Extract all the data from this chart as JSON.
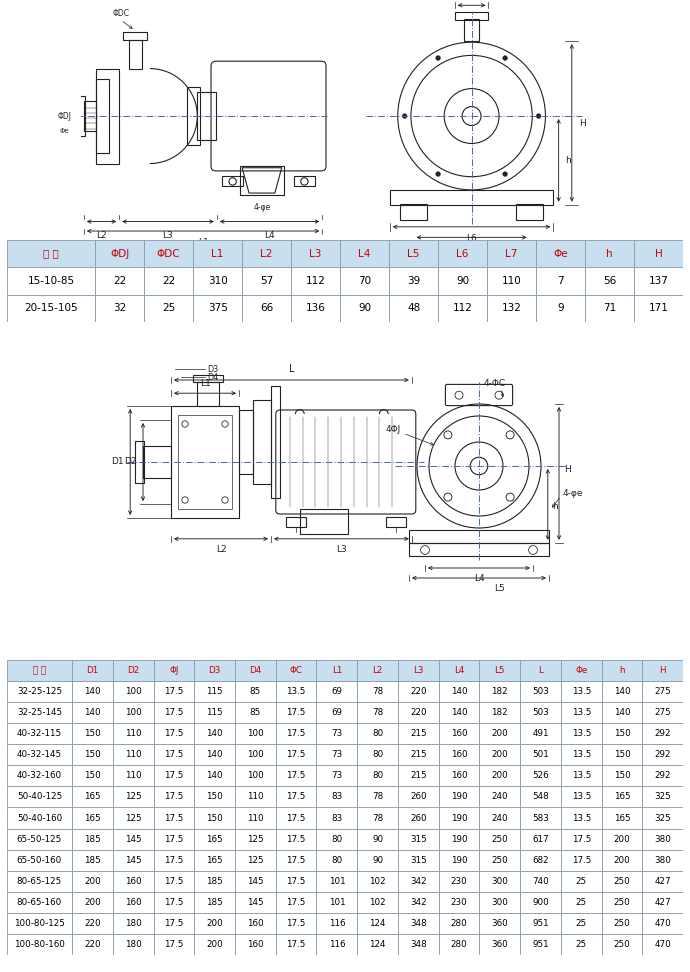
{
  "bg_color": "#ffffff",
  "diagram_bg": "#dce8f5",
  "table1_header": [
    "型 号",
    "ΦDJ",
    "ΦDC",
    "L1",
    "L2",
    "L3",
    "L4",
    "L5",
    "L6",
    "L7",
    "Φe",
    "h",
    "H"
  ],
  "table1_data": [
    [
      "15-10-85",
      "22",
      "22",
      "310",
      "57",
      "112",
      "70",
      "39",
      "90",
      "110",
      "7",
      "56",
      "137"
    ],
    [
      "20-15-105",
      "32",
      "25",
      "375",
      "66",
      "136",
      "90",
      "48",
      "112",
      "132",
      "9",
      "71",
      "171"
    ]
  ],
  "table2_header": [
    "型 号",
    "D1",
    "D2",
    "ΦJ",
    "D3",
    "D4",
    "ΦC",
    "L1",
    "L2",
    "L3",
    "L4",
    "L5",
    "L",
    "Φe",
    "h",
    "H"
  ],
  "table2_data": [
    [
      "32-25-125",
      "140",
      "100",
      "17.5",
      "115",
      "85",
      "13.5",
      "69",
      "78",
      "220",
      "140",
      "182",
      "503",
      "13.5",
      "140",
      "275"
    ],
    [
      "32-25-145",
      "140",
      "100",
      "17.5",
      "115",
      "85",
      "17.5",
      "69",
      "78",
      "220",
      "140",
      "182",
      "503",
      "13.5",
      "140",
      "275"
    ],
    [
      "40-32-115",
      "150",
      "110",
      "17.5",
      "140",
      "100",
      "17.5",
      "73",
      "80",
      "215",
      "160",
      "200",
      "491",
      "13.5",
      "150",
      "292"
    ],
    [
      "40-32-145",
      "150",
      "110",
      "17.5",
      "140",
      "100",
      "17.5",
      "73",
      "80",
      "215",
      "160",
      "200",
      "501",
      "13.5",
      "150",
      "292"
    ],
    [
      "40-32-160",
      "150",
      "110",
      "17.5",
      "140",
      "100",
      "17.5",
      "73",
      "80",
      "215",
      "160",
      "200",
      "526",
      "13.5",
      "150",
      "292"
    ],
    [
      "50-40-125",
      "165",
      "125",
      "17.5",
      "150",
      "110",
      "17.5",
      "83",
      "78",
      "260",
      "190",
      "240",
      "548",
      "13.5",
      "165",
      "325"
    ],
    [
      "50-40-160",
      "165",
      "125",
      "17.5",
      "150",
      "110",
      "17.5",
      "83",
      "78",
      "260",
      "190",
      "240",
      "583",
      "13.5",
      "165",
      "325"
    ],
    [
      "65-50-125",
      "185",
      "145",
      "17.5",
      "165",
      "125",
      "17.5",
      "80",
      "90",
      "315",
      "190",
      "250",
      "617",
      "17.5",
      "200",
      "380"
    ],
    [
      "65-50-160",
      "185",
      "145",
      "17.5",
      "165",
      "125",
      "17.5",
      "80",
      "90",
      "315",
      "190",
      "250",
      "682",
      "17.5",
      "200",
      "380"
    ],
    [
      "80-65-125",
      "200",
      "160",
      "17.5",
      "185",
      "145",
      "17.5",
      "101",
      "102",
      "342",
      "230",
      "300",
      "740",
      "25",
      "250",
      "427"
    ],
    [
      "80-65-160",
      "200",
      "160",
      "17.5",
      "185",
      "145",
      "17.5",
      "101",
      "102",
      "342",
      "230",
      "300",
      "900",
      "25",
      "250",
      "427"
    ],
    [
      "100-80-125",
      "220",
      "180",
      "17.5",
      "200",
      "160",
      "17.5",
      "116",
      "124",
      "348",
      "280",
      "360",
      "951",
      "25",
      "250",
      "470"
    ],
    [
      "100-80-160",
      "220",
      "180",
      "17.5",
      "200",
      "160",
      "17.5",
      "116",
      "124",
      "348",
      "280",
      "360",
      "951",
      "25",
      "250",
      "470"
    ]
  ],
  "header_bg": "#c8dff0",
  "border_color": "#8899aa",
  "lc": "#222222",
  "lw": 0.8
}
